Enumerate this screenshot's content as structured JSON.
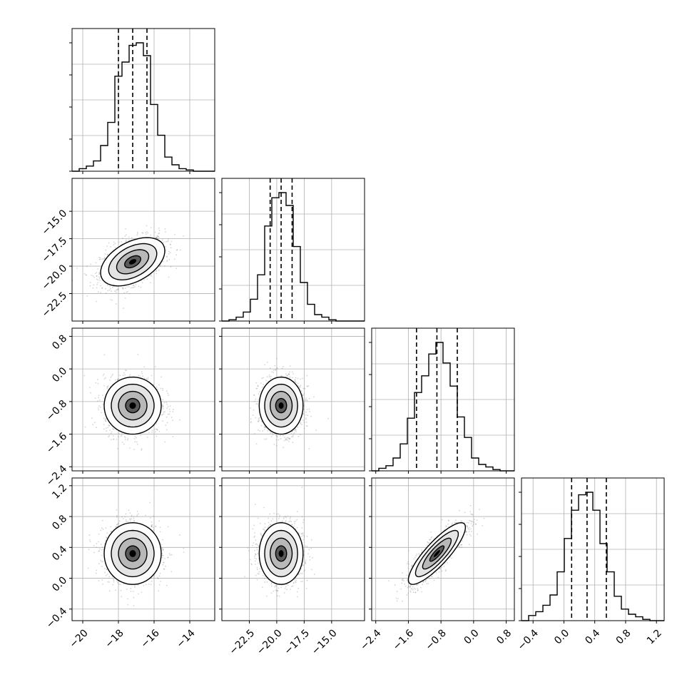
{
  "chart_data": {
    "type": "corner",
    "parameters": [
      {
        "range": [
          -20.6,
          -12.6
        ],
        "ticks": [
          -20,
          -18,
          -16,
          -14
        ],
        "tick_labels": [
          "−20",
          "−18",
          "−16",
          "−14"
        ],
        "quantiles": [
          -18.0,
          -17.2,
          -16.4
        ],
        "hist": {
          "edges": [
            -20.6,
            -20.2,
            -19.8,
            -19.4,
            -19.0,
            -18.6,
            -18.2,
            -17.8,
            -17.4,
            -17.0,
            -16.6,
            -16.2,
            -15.8,
            -15.4,
            -15.0,
            -14.6,
            -14.2,
            -13.8,
            -13.4,
            -13.0,
            -12.6
          ],
          "counts": [
            0.0,
            0.02,
            0.04,
            0.08,
            0.2,
            0.38,
            0.74,
            0.85,
            0.98,
            1.0,
            0.9,
            0.52,
            0.28,
            0.11,
            0.05,
            0.02,
            0.01,
            0.0,
            0.0,
            0.0
          ]
        }
      },
      {
        "range": [
          -25.0,
          -12.0
        ],
        "ticks": [
          -22.5,
          -20.0,
          -17.5,
          -15.0
        ],
        "tick_labels": [
          "−22.5",
          "−20.0",
          "−17.5",
          "−15.0"
        ],
        "quantiles": [
          -20.6,
          -19.6,
          -18.6
        ],
        "hist": {
          "edges": [
            -25.0,
            -24.35,
            -23.7,
            -23.05,
            -22.4,
            -21.75,
            -21.1,
            -20.45,
            -19.8,
            -19.15,
            -18.5,
            -17.85,
            -17.2,
            -16.55,
            -15.9,
            -15.25,
            -14.6,
            -13.95,
            -13.3,
            -12.65,
            -12.0
          ],
          "counts": [
            0.0,
            0.01,
            0.03,
            0.07,
            0.17,
            0.36,
            0.74,
            0.96,
            1.0,
            0.9,
            0.58,
            0.3,
            0.13,
            0.05,
            0.03,
            0.01,
            0.0,
            0.0,
            0.0,
            0.0
          ]
        }
      },
      {
        "range": [
          -2.5,
          1.0
        ],
        "ticks": [
          -2.4,
          -1.6,
          -0.8,
          0.0,
          0.8
        ],
        "tick_labels": [
          "−2.4",
          "−1.6",
          "−0.8",
          "0.0",
          "0.8"
        ],
        "quantiles": [
          -1.4,
          -0.9,
          -0.4
        ],
        "hist": {
          "edges": [
            -2.5,
            -2.325,
            -2.15,
            -1.975,
            -1.8,
            -1.625,
            -1.45,
            -1.275,
            -1.1,
            -0.925,
            -0.75,
            -0.575,
            -0.4,
            -0.225,
            -0.05,
            0.125,
            0.3,
            0.475,
            0.65,
            0.825,
            1.0
          ],
          "counts": [
            0.0,
            0.02,
            0.04,
            0.1,
            0.21,
            0.41,
            0.61,
            0.74,
            0.91,
            1.0,
            0.84,
            0.66,
            0.42,
            0.26,
            0.1,
            0.05,
            0.03,
            0.01,
            0.0,
            0.0
          ]
        }
      },
      {
        "range": [
          -0.55,
          1.3
        ],
        "ticks": [
          -0.4,
          0.0,
          0.4,
          0.8,
          1.2
        ],
        "tick_labels": [
          "−0.4",
          "0.0",
          "0.4",
          "0.8",
          "1.2"
        ],
        "quantiles": [
          0.1,
          0.3,
          0.55
        ],
        "hist": {
          "edges": [
            -0.55,
            -0.4575,
            -0.365,
            -0.2725,
            -0.18,
            -0.0875,
            0.005,
            0.0975,
            0.19,
            0.2825,
            0.375,
            0.4675,
            0.56,
            0.6525,
            0.745,
            0.8375,
            0.93,
            1.0225,
            1.115,
            1.2075,
            1.3
          ],
          "counts": [
            0.0,
            0.04,
            0.07,
            0.12,
            0.2,
            0.38,
            0.64,
            0.86,
            0.98,
            1.0,
            0.86,
            0.6,
            0.38,
            0.19,
            0.09,
            0.05,
            0.03,
            0.01,
            0.0,
            0.0
          ]
        }
      }
    ],
    "pairs": [
      {
        "row": 1,
        "col": 0,
        "mean": [
          -17.2,
          -19.6
        ],
        "sd": [
          0.9,
          1.1
        ],
        "rho": 0.45
      },
      {
        "row": 2,
        "col": 0,
        "mean": [
          -17.2,
          -0.9
        ],
        "sd": [
          0.8,
          0.35
        ],
        "rho": 0.0
      },
      {
        "row": 2,
        "col": 1,
        "mean": [
          -19.6,
          -0.9
        ],
        "sd": [
          1.0,
          0.35
        ],
        "rho": 0.0
      },
      {
        "row": 3,
        "col": 0,
        "mean": [
          -17.2,
          0.32
        ],
        "sd": [
          0.8,
          0.2
        ],
        "rho": 0.0
      },
      {
        "row": 3,
        "col": 1,
        "mean": [
          -19.6,
          0.32
        ],
        "sd": [
          1.0,
          0.2
        ],
        "rho": 0.0
      },
      {
        "row": 3,
        "col": 2,
        "mean": [
          -0.9,
          0.32
        ],
        "sd": [
          0.35,
          0.2
        ],
        "rho": 0.85
      }
    ],
    "contour_levels_sigma": [
      0.5,
      1.0,
      1.5,
      2.0
    ],
    "quantiles": [
      0.16,
      0.5,
      0.84
    ],
    "grid": true,
    "colors": {
      "hist": "#000000",
      "scatter": "#888888",
      "contour": "#000000",
      "grid": "#b0b0b0"
    }
  }
}
